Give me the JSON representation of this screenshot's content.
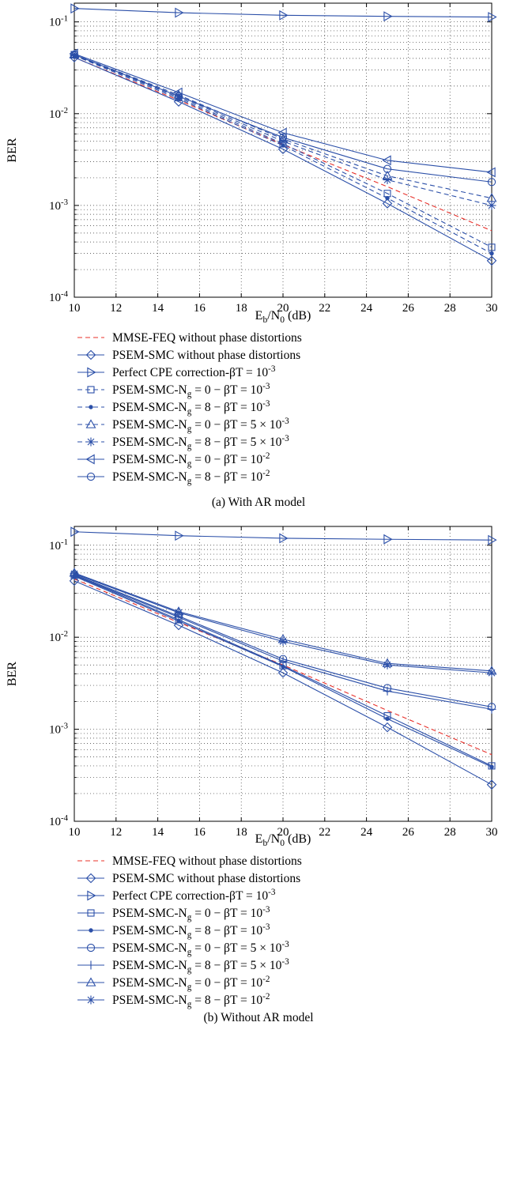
{
  "chart_data": [
    {
      "type": "line",
      "caption": "(a)  With AR model",
      "xlabel": "E_b/N_0 (dB)",
      "ylabel": "BER",
      "x": [
        10,
        15,
        20,
        25,
        30
      ],
      "xlim": [
        10,
        30
      ],
      "ylim": [
        0.0001,
        0.16
      ],
      "yscale": "log",
      "xticks": [
        "10",
        "12",
        "14",
        "16",
        "18",
        "20",
        "22",
        "24",
        "26",
        "28",
        "30"
      ],
      "yticks": [
        "10^-1",
        "10^-2",
        "10^-3",
        "10^-4"
      ],
      "grid": true,
      "legend_position": "below",
      "series": [
        {
          "name": "MMSE-FEQ without phase distortions",
          "marker": "none",
          "dash": "dash",
          "color": "#e8302a",
          "values": [
            0.041,
            0.014,
            0.0046,
            0.0016,
            0.00053
          ]
        },
        {
          "name": "PSEM-SMC without phase distortions",
          "marker": "diamond",
          "dash": "solid",
          "color": "#2b4fa8",
          "values": [
            0.041,
            0.0135,
            0.0041,
            0.00105,
            0.00025
          ]
        },
        {
          "name": "Perfect CPE correction-βT = 10^-3",
          "marker": "triangle-right",
          "dash": "solid",
          "color": "#2b4fa8",
          "values": [
            0.14,
            0.126,
            0.118,
            0.115,
            0.113
          ]
        },
        {
          "name": "PSEM-SMC-N_g = 0 − βT = 10^-3",
          "marker": "square",
          "dash": "dash",
          "color": "#2b4fa8",
          "values": [
            0.044,
            0.015,
            0.0047,
            0.00135,
            0.00035
          ]
        },
        {
          "name": "PSEM-SMC-N_g = 8 − βT = 10^-3",
          "marker": "dot",
          "dash": "dash",
          "color": "#2b4fa8",
          "values": [
            0.043,
            0.0145,
            0.0045,
            0.0012,
            0.0003
          ]
        },
        {
          "name": "PSEM-SMC-N_g = 0 − βT = 5 × 10^-3",
          "marker": "triangle-up",
          "dash": "dash",
          "color": "#2b4fa8",
          "values": [
            0.044,
            0.016,
            0.0053,
            0.0021,
            0.0012
          ]
        },
        {
          "name": "PSEM-SMC-N_g = 8 − βT = 5 × 10^-3",
          "marker": "asterisk",
          "dash": "dash",
          "color": "#2b4fa8",
          "values": [
            0.043,
            0.0155,
            0.005,
            0.0019,
            0.001
          ]
        },
        {
          "name": "PSEM-SMC-N_g = 0 − βT = 10^-2",
          "marker": "triangle-left",
          "dash": "solid",
          "color": "#2b4fa8",
          "values": [
            0.045,
            0.017,
            0.0062,
            0.0031,
            0.0023
          ]
        },
        {
          "name": "PSEM-SMC-N_g = 8 − βT = 10^-2",
          "marker": "circle",
          "dash": "solid",
          "color": "#2b4fa8",
          "values": [
            0.044,
            0.0155,
            0.0055,
            0.0025,
            0.0018
          ]
        }
      ]
    },
    {
      "type": "line",
      "caption": "(b)  Without AR model",
      "xlabel": "E_b/N_0 (dB)",
      "ylabel": "BER",
      "x": [
        10,
        15,
        20,
        25,
        30
      ],
      "xlim": [
        10,
        30
      ],
      "ylim": [
        0.0001,
        0.16
      ],
      "yscale": "log",
      "xticks": [
        "10",
        "12",
        "14",
        "16",
        "18",
        "20",
        "22",
        "24",
        "26",
        "28",
        "30"
      ],
      "yticks": [
        "10^-1",
        "10^-2",
        "10^-3",
        "10^-4"
      ],
      "grid": true,
      "legend_position": "below",
      "series": [
        {
          "name": "MMSE-FEQ without phase distortions",
          "marker": "none",
          "dash": "dash",
          "color": "#e8302a",
          "values": [
            0.043,
            0.0145,
            0.005,
            0.0016,
            0.00053
          ]
        },
        {
          "name": "PSEM-SMC without phase distortions",
          "marker": "diamond",
          "dash": "solid",
          "color": "#2b4fa8",
          "values": [
            0.041,
            0.0135,
            0.0041,
            0.00105,
            0.00025
          ]
        },
        {
          "name": "Perfect CPE correction-βT = 10^-3",
          "marker": "triangle-right",
          "dash": "solid",
          "color": "#2b4fa8",
          "values": [
            0.14,
            0.127,
            0.119,
            0.116,
            0.114
          ]
        },
        {
          "name": "PSEM-SMC-N_g = 0 − βT = 10^-3",
          "marker": "square",
          "dash": "solid",
          "color": "#2b4fa8",
          "values": [
            0.047,
            0.0155,
            0.0049,
            0.0014,
            0.0004
          ]
        },
        {
          "name": "PSEM-SMC-N_g = 8 − βT = 10^-3",
          "marker": "dot",
          "dash": "solid",
          "color": "#2b4fa8",
          "values": [
            0.046,
            0.015,
            0.0048,
            0.0013,
            0.00039
          ]
        },
        {
          "name": "PSEM-SMC-N_g = 0 − βT = 5 × 10^-3",
          "marker": "circle",
          "dash": "solid",
          "color": "#2b4fa8",
          "values": [
            0.048,
            0.017,
            0.0058,
            0.0028,
            0.00175
          ]
        },
        {
          "name": "PSEM-SMC-N_g = 8 − βT = 5 × 10^-3",
          "marker": "plus",
          "dash": "solid",
          "color": "#2b4fa8",
          "values": [
            0.047,
            0.0165,
            0.0055,
            0.0026,
            0.00165
          ]
        },
        {
          "name": "PSEM-SMC-N_g = 0 − βT = 10^-2",
          "marker": "triangle-up",
          "dash": "solid",
          "color": "#2b4fa8",
          "values": [
            0.05,
            0.019,
            0.0095,
            0.0052,
            0.0043
          ]
        },
        {
          "name": "PSEM-SMC-N_g = 8 − βT = 10^-2",
          "marker": "asterisk",
          "dash": "solid",
          "color": "#2b4fa8",
          "values": [
            0.049,
            0.0185,
            0.009,
            0.005,
            0.0041
          ]
        }
      ]
    }
  ]
}
